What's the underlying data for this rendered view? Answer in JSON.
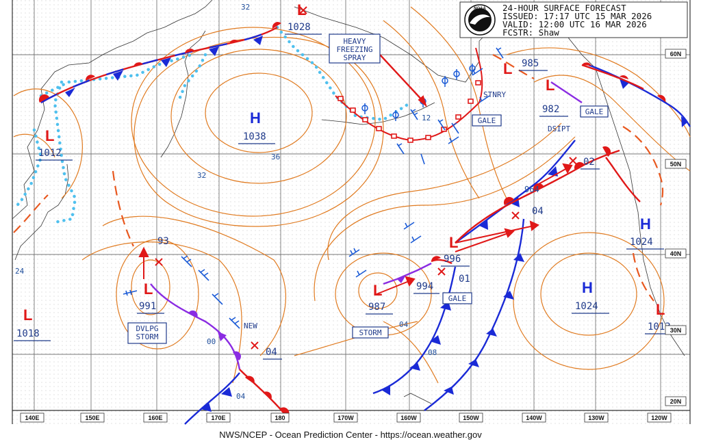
{
  "header": {
    "lines": [
      "24-HOUR SURFACE FORECAST",
      "ISSUED: 17:17 UTC 15 MAR 2026",
      "VALID:  12:00 UTC 16 MAR 2026",
      "FCSTR:  Shaw"
    ],
    "logo_text": "NOAA"
  },
  "footer": "NWS/NCEP - Ocean Prediction Center - https://ocean.weather.gov",
  "lon_labels": [
    "140E",
    "150E",
    "160E",
    "170E",
    "180",
    "170W",
    "160W",
    "150W",
    "140W",
    "130W",
    "120W"
  ],
  "lat_labels": [
    "60N",
    "50N",
    "40N",
    "30N",
    "20N"
  ],
  "pressure_centers": [
    {
      "type": "H",
      "value": "1038"
    },
    {
      "type": "H",
      "value": "1024"
    },
    {
      "type": "H",
      "value": "1024"
    },
    {
      "type": "L",
      "value": "1028"
    },
    {
      "type": "L",
      "value": "1012"
    },
    {
      "type": "L",
      "value": "1018"
    },
    {
      "type": "L",
      "value": "991"
    },
    {
      "type": "L",
      "value": "987"
    },
    {
      "type": "L",
      "value": "996"
    },
    {
      "type": "L",
      "value": "985"
    },
    {
      "type": "L",
      "value": "982"
    },
    {
      "type": "L",
      "value": "1013"
    }
  ],
  "forecast_values": [
    "93",
    "04",
    "994",
    "01",
    "02",
    "964",
    "04"
  ],
  "isobar_labels": [
    "32",
    "36",
    "32",
    "24",
    "00",
    "04",
    "04",
    "08",
    "12"
  ],
  "boxed_labels": [
    "HEAVY FREEZING SPRAY",
    "GALE",
    "GALE",
    "GALE",
    "DVLPG STORM",
    "STORM"
  ],
  "text_labels": [
    "STNRY",
    "DSIPT",
    "NEW"
  ],
  "colors": {
    "isobar": "#e07a1f",
    "cold_front": "#1a2ad6",
    "warm_front": "#e01818",
    "occluded_front": "#8a2be2",
    "ice_edge": "#4fc0ee",
    "label_blue": "#1f3a8a",
    "low_marker": "#e01818",
    "grid": "#8a8a8a"
  }
}
